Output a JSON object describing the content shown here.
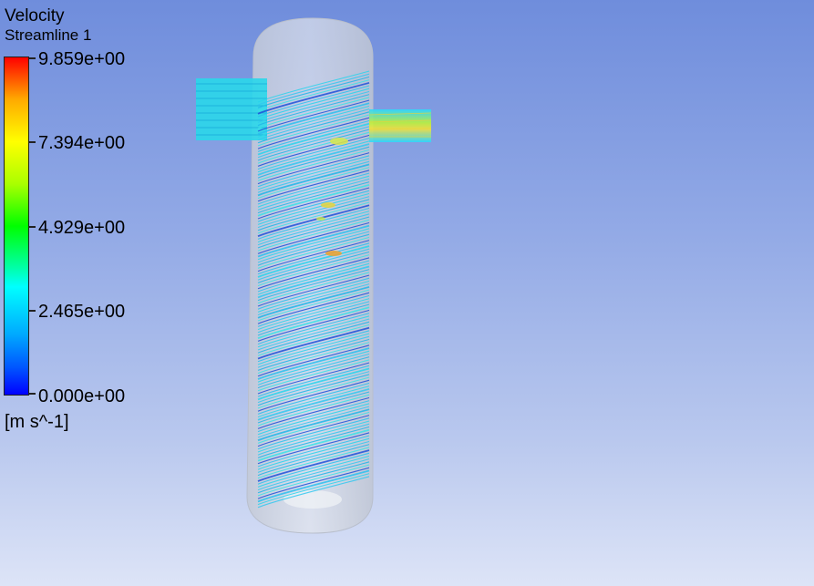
{
  "legend": {
    "title": "Velocity",
    "subtitle": "Streamline 1",
    "ticks": [
      "9.859e+00",
      "7.394e+00",
      "4.929e+00",
      "2.465e+00",
      "0.000e+00"
    ],
    "units": "[m s^-1]",
    "colormap": [
      "#0000ff",
      "#00aaff",
      "#00ffff",
      "#00ff00",
      "#ffff00",
      "#ff0000"
    ]
  },
  "scene": {
    "background_top": "#6f8ddc",
    "background_bottom": "#dde4f7",
    "vessel_color": "#d2d6de",
    "streamline_dominant_color": "#27d6e8"
  }
}
